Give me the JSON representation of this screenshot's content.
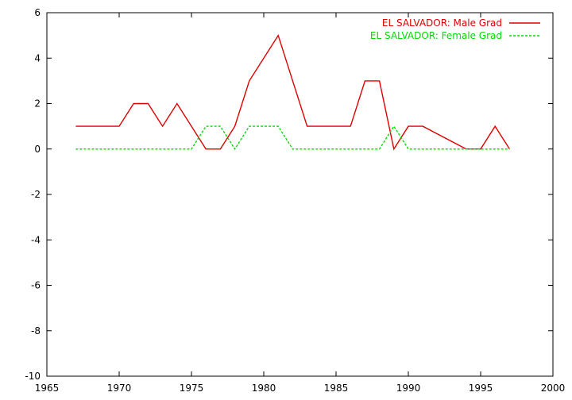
{
  "chart_data": {
    "type": "line",
    "xlim": [
      1965,
      2000
    ],
    "ylim": [
      -10,
      6
    ],
    "xticks": [
      1965,
      1970,
      1975,
      1980,
      1985,
      1990,
      1995,
      2000
    ],
    "yticks": [
      -10,
      -8,
      -6,
      -4,
      -2,
      0,
      2,
      4,
      6
    ],
    "grid": false,
    "legend_position": "top-right",
    "series": [
      {
        "name": "EL SALVADOR: Male Grad",
        "color": "#dd0000",
        "dash": "solid",
        "x": [
          1967,
          1968,
          1969,
          1970,
          1971,
          1972,
          1973,
          1974,
          1975,
          1976,
          1977,
          1978,
          1979,
          1980,
          1981,
          1982,
          1983,
          1984,
          1985,
          1986,
          1987,
          1988,
          1989,
          1990,
          1991,
          1994,
          1995,
          1996,
          1997
        ],
        "y": [
          1,
          1,
          1,
          1,
          2,
          2,
          1,
          2,
          1,
          0,
          0,
          1,
          3,
          4,
          5,
          3,
          1,
          1,
          1,
          1,
          3,
          3,
          0,
          1,
          1,
          0,
          0,
          1,
          0
        ]
      },
      {
        "name": "EL SALVADOR: Female Grad",
        "color": "#00dd00",
        "dash": "dashed",
        "x": [
          1967,
          1968,
          1969,
          1970,
          1971,
          1972,
          1973,
          1974,
          1975,
          1976,
          1977,
          1978,
          1979,
          1980,
          1981,
          1982,
          1983,
          1984,
          1985,
          1986,
          1987,
          1988,
          1989,
          1990,
          1991,
          1994,
          1995,
          1996,
          1997
        ],
        "y": [
          0,
          0,
          0,
          0,
          0,
          0,
          0,
          0,
          0,
          1,
          1,
          0,
          1,
          1,
          1,
          0,
          0,
          0,
          0,
          0,
          0,
          0,
          1,
          0,
          0,
          0,
          0,
          0,
          0
        ]
      }
    ]
  }
}
